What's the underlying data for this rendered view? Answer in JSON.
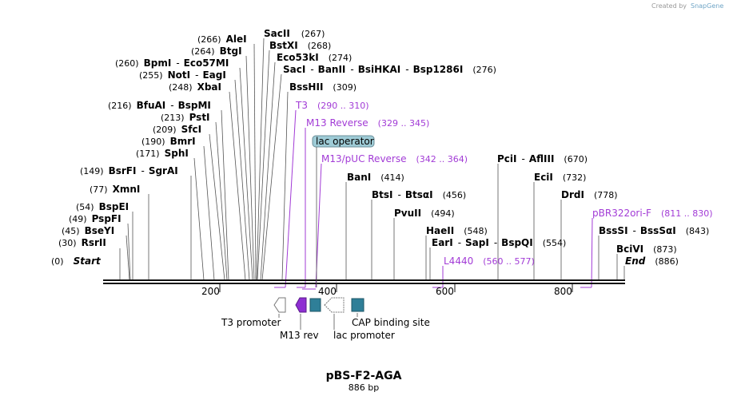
{
  "credit": {
    "text": "Created by",
    "brand": "SnapGene"
  },
  "title": "pBS-F2-AGA",
  "subtitle": "886 bp",
  "map": {
    "length": 886,
    "start": 0,
    "end": 886
  },
  "axis": {
    "ticks": [
      200,
      400,
      600,
      800
    ],
    "tick_labels": [
      "200",
      "400",
      "600",
      "800"
    ]
  },
  "sites": [
    {
      "pos": "(0)",
      "name": "Start",
      "italic": true
    },
    {
      "pos": "(30)",
      "name": "RsrII"
    },
    {
      "pos": "(45)",
      "name": "BseYI"
    },
    {
      "pos": "(49)",
      "name": "PspFI"
    },
    {
      "pos": "(54)",
      "name": "BspEI"
    },
    {
      "pos": "(77)",
      "name": "XmnI"
    },
    {
      "pos": "(149)",
      "name": "BsrFI",
      "name2": "SgrAI"
    },
    {
      "pos": "(171)",
      "name": "SphI"
    },
    {
      "pos": "(190)",
      "name": "BmrI"
    },
    {
      "pos": "(209)",
      "name": "SfcI"
    },
    {
      "pos": "(213)",
      "name": "PstI"
    },
    {
      "pos": "(216)",
      "name": "BfuAI",
      "name2": "BspMI"
    },
    {
      "pos": "(248)",
      "name": "XbaI"
    },
    {
      "pos": "(255)",
      "name": "NotI",
      "name2": "EagI"
    },
    {
      "pos": "(260)",
      "name": "BpmI",
      "name2": "Eco57MI"
    },
    {
      "pos": "(264)",
      "name": "BtgI"
    },
    {
      "pos": "(266)",
      "name": "AleI"
    },
    {
      "pos": "(267)",
      "name": "SacII"
    },
    {
      "pos": "(268)",
      "name": "BstXI"
    },
    {
      "pos": "(274)",
      "name": "Eco53kI"
    },
    {
      "pos": "(276)",
      "name": "SacI",
      "name2": "BanII",
      "name3": "BsiHKAI",
      "name4": "Bsp1286I"
    },
    {
      "pos": "(309)",
      "name": "BssHII"
    },
    {
      "pos": "(414)",
      "name": "BanI"
    },
    {
      "pos": "(456)",
      "name": "BtsI",
      "name2": "BtsαI"
    },
    {
      "pos": "(494)",
      "name": "PvuII"
    },
    {
      "pos": "(548)",
      "name": "HaeII"
    },
    {
      "pos": "(554)",
      "name": "EarI",
      "name2": "SapI",
      "name3": "BspQI"
    },
    {
      "pos": "(670)",
      "name": "PciI",
      "name2": "AflIII"
    },
    {
      "pos": "(732)",
      "name": "EciI"
    },
    {
      "pos": "(778)",
      "name": "DrdI"
    },
    {
      "pos": "(843)",
      "name": "BssSI",
      "name2": "BssSαI"
    },
    {
      "pos": "(873)",
      "name": "BciVI"
    },
    {
      "pos": "(886)",
      "name": "End",
      "italic": true
    }
  ],
  "primers": [
    {
      "name": "T3",
      "range": "(290 .. 310)"
    },
    {
      "name": "M13 Reverse",
      "range": "(329 .. 345)"
    },
    {
      "name": "M13/pUC Reverse",
      "range": "(342 .. 364)"
    },
    {
      "name": "L4440",
      "range": "(560 .. 577)"
    },
    {
      "name": "pBR322ori-F",
      "range": "(811 .. 830)"
    }
  ],
  "features": [
    {
      "name": "lac operator"
    },
    {
      "name": "T3 promoter"
    },
    {
      "name": "M13 rev"
    },
    {
      "name": "lac promoter"
    },
    {
      "name": "CAP binding site"
    }
  ],
  "colors": {
    "primer": "#a23bd6",
    "feature_teal": "#2f7f98",
    "operator_fill": "#9ecbd6",
    "m13rev": "#8e2fd2"
  }
}
